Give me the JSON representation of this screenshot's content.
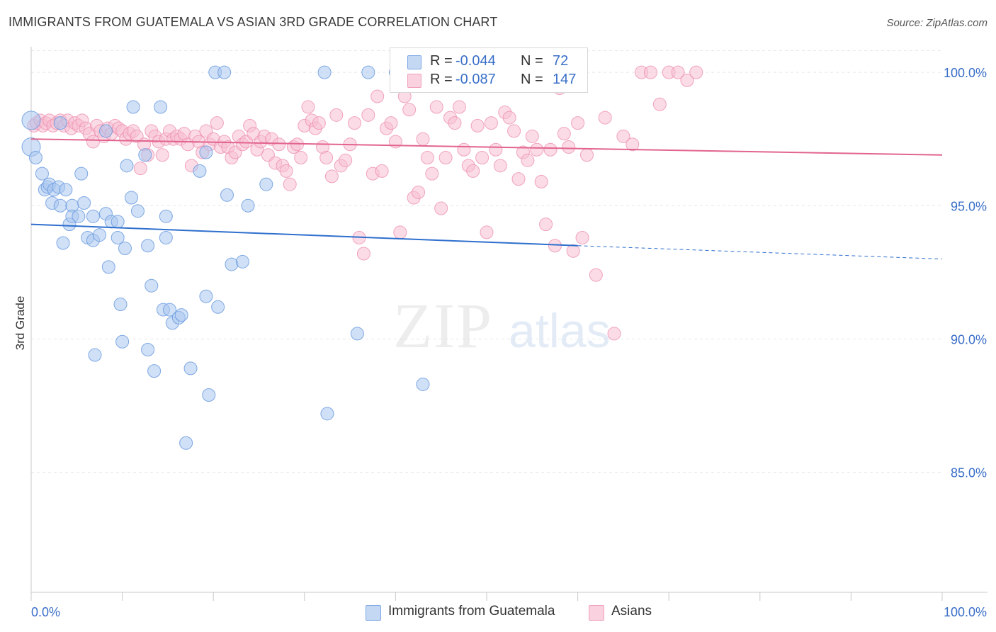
{
  "title": "IMMIGRANTS FROM GUATEMALA VS ASIAN 3RD GRADE CORRELATION CHART",
  "source": "Source: ZipAtlas.com",
  "watermark": {
    "zip": "ZIP",
    "atlas": "atlas"
  },
  "legend": {
    "series1": {
      "r_label": "R =",
      "r_value": "-0.044",
      "n_label": "N =",
      "n_value": "72"
    },
    "series2": {
      "r_label": "R =",
      "r_value": "-0.087",
      "n_label": "N =",
      "n_value": "147"
    }
  },
  "bottom_legend": {
    "series1": "Immigrants from Guatemala",
    "series2": "Asians"
  },
  "colors": {
    "blue_fill": "#a9c6ef",
    "blue_stroke": "#6b9be0",
    "blue_line": "#2f6fcd",
    "pink_fill": "#f7c0d1",
    "pink_stroke": "#ee8fb0",
    "pink_line": "#e2648f",
    "tick_label": "#3a6fc8",
    "grid": "#e6e6e6"
  },
  "chart_data": {
    "type": "scatter",
    "title": "IMMIGRANTS FROM GUATEMALA VS ASIAN 3RD GRADE CORRELATION CHART",
    "xlabel": "",
    "ylabel": "3rd Grade",
    "xlim": [
      0,
      100
    ],
    "ylim": [
      80.5,
      100.8
    ],
    "x_tick_labels": [
      "0.0%",
      "100.0%"
    ],
    "y_ticks": [
      85,
      90,
      95,
      100
    ],
    "y_tick_labels": [
      "85.0%",
      "90.0%",
      "95.0%",
      "100.0%"
    ],
    "grid": true,
    "series": [
      {
        "name": "Immigrants from Guatemala",
        "color": "blue",
        "trend": {
          "x": [
            0,
            60
          ],
          "y": [
            94.3,
            93.5
          ],
          "dashed_to": [
            100,
            93.0
          ]
        },
        "points": [
          [
            0.0,
            98.2
          ],
          [
            0.0,
            97.2
          ],
          [
            0.5,
            96.8
          ],
          [
            1.2,
            96.2
          ],
          [
            1.5,
            95.6
          ],
          [
            1.8,
            95.7
          ],
          [
            2.0,
            95.8
          ],
          [
            2.3,
            95.1
          ],
          [
            2.5,
            95.6
          ],
          [
            3.0,
            95.7
          ],
          [
            3.2,
            95.0
          ],
          [
            3.8,
            95.6
          ],
          [
            3.5,
            93.6
          ],
          [
            4.5,
            95.0
          ],
          [
            4.2,
            94.3
          ],
          [
            4.5,
            94.6
          ],
          [
            5.5,
            96.2
          ],
          [
            5.8,
            95.1
          ],
          [
            5.2,
            94.6
          ],
          [
            6.2,
            93.8
          ],
          [
            6.8,
            93.7
          ],
          [
            6.8,
            94.6
          ],
          [
            7.5,
            93.9
          ],
          [
            8.2,
            94.7
          ],
          [
            8.5,
            92.7
          ],
          [
            8.8,
            94.4
          ],
          [
            9.5,
            94.4
          ],
          [
            9.5,
            93.8
          ],
          [
            9.8,
            91.3
          ],
          [
            10.3,
            93.4
          ],
          [
            10.5,
            96.5
          ],
          [
            11.0,
            95.3
          ],
          [
            11.2,
            98.7
          ],
          [
            11.7,
            94.8
          ],
          [
            12.5,
            96.9
          ],
          [
            12.8,
            93.5
          ],
          [
            12.8,
            89.6
          ],
          [
            13.2,
            92.0
          ],
          [
            13.5,
            88.8
          ],
          [
            14.2,
            98.7
          ],
          [
            14.5,
            91.1
          ],
          [
            14.8,
            93.8
          ],
          [
            14.8,
            94.6
          ],
          [
            15.2,
            91.1
          ],
          [
            15.5,
            90.6
          ],
          [
            16.2,
            90.8
          ],
          [
            16.5,
            90.9
          ],
          [
            17.0,
            86.1
          ],
          [
            17.5,
            88.9
          ],
          [
            18.5,
            96.3
          ],
          [
            19.2,
            97.0
          ],
          [
            19.2,
            91.6
          ],
          [
            19.5,
            87.9
          ],
          [
            20.5,
            91.2
          ],
          [
            20.2,
            100.0
          ],
          [
            21.2,
            100.0
          ],
          [
            21.5,
            95.4
          ],
          [
            22.0,
            92.8
          ],
          [
            23.2,
            92.9
          ],
          [
            23.8,
            95.0
          ],
          [
            25.8,
            95.8
          ],
          [
            10.0,
            89.9
          ],
          [
            7.0,
            89.4
          ],
          [
            3.2,
            98.1
          ],
          [
            8.2,
            97.8
          ],
          [
            32.5,
            87.2
          ],
          [
            32.2,
            100.0
          ],
          [
            35.8,
            90.2
          ],
          [
            37.0,
            100.0
          ],
          [
            40.0,
            100.0
          ],
          [
            43.0,
            88.3
          ],
          [
            60.0,
            100.0
          ]
        ]
      },
      {
        "name": "Asians",
        "color": "pink",
        "trend": {
          "x": [
            0,
            100
          ],
          "y": [
            97.5,
            96.9
          ]
        },
        "points": [
          [
            0.3,
            98.0
          ],
          [
            0.6,
            98.1
          ],
          [
            1.0,
            98.2
          ],
          [
            1.3,
            98.0
          ],
          [
            1.6,
            98.1
          ],
          [
            2.0,
            98.2
          ],
          [
            2.4,
            98.0
          ],
          [
            2.8,
            98.1
          ],
          [
            3.2,
            98.2
          ],
          [
            3.6,
            98.0
          ],
          [
            4.0,
            98.2
          ],
          [
            4.4,
            97.9
          ],
          [
            4.8,
            98.1
          ],
          [
            5.2,
            98.0
          ],
          [
            5.6,
            98.2
          ],
          [
            6.0,
            97.9
          ],
          [
            6.4,
            97.7
          ],
          [
            6.8,
            97.4
          ],
          [
            7.2,
            98.0
          ],
          [
            7.6,
            97.8
          ],
          [
            8.0,
            97.6
          ],
          [
            8.4,
            97.9
          ],
          [
            8.8,
            97.7
          ],
          [
            9.2,
            98.0
          ],
          [
            9.6,
            97.9
          ],
          [
            10.0,
            97.8
          ],
          [
            10.4,
            97.5
          ],
          [
            10.8,
            97.7
          ],
          [
            11.2,
            97.8
          ],
          [
            11.6,
            97.6
          ],
          [
            12.0,
            96.4
          ],
          [
            12.4,
            97.3
          ],
          [
            12.8,
            96.9
          ],
          [
            13.2,
            97.8
          ],
          [
            13.6,
            97.6
          ],
          [
            14.0,
            97.4
          ],
          [
            14.4,
            96.9
          ],
          [
            14.8,
            97.5
          ],
          [
            15.2,
            97.8
          ],
          [
            15.6,
            97.5
          ],
          [
            16.0,
            97.6
          ],
          [
            16.4,
            97.5
          ],
          [
            16.8,
            97.7
          ],
          [
            17.2,
            97.3
          ],
          [
            17.6,
            96.5
          ],
          [
            18.0,
            97.6
          ],
          [
            18.4,
            97.4
          ],
          [
            18.8,
            97.0
          ],
          [
            19.2,
            97.8
          ],
          [
            19.6,
            97.3
          ],
          [
            20.0,
            97.5
          ],
          [
            20.4,
            98.1
          ],
          [
            20.8,
            97.2
          ],
          [
            21.2,
            97.4
          ],
          [
            21.6,
            97.2
          ],
          [
            22.0,
            96.8
          ],
          [
            22.4,
            97.0
          ],
          [
            22.8,
            97.6
          ],
          [
            23.2,
            97.3
          ],
          [
            23.6,
            97.4
          ],
          [
            24.0,
            98.0
          ],
          [
            24.4,
            97.7
          ],
          [
            24.8,
            97.1
          ],
          [
            25.2,
            97.4
          ],
          [
            25.6,
            97.6
          ],
          [
            26.0,
            96.9
          ],
          [
            26.4,
            97.5
          ],
          [
            26.8,
            96.6
          ],
          [
            27.2,
            97.3
          ],
          [
            27.6,
            96.5
          ],
          [
            28.0,
            96.3
          ],
          [
            28.4,
            95.8
          ],
          [
            28.8,
            97.2
          ],
          [
            29.2,
            97.3
          ],
          [
            29.6,
            96.8
          ],
          [
            30.0,
            98.0
          ],
          [
            30.4,
            98.7
          ],
          [
            30.8,
            98.2
          ],
          [
            31.2,
            97.9
          ],
          [
            31.6,
            98.1
          ],
          [
            32.0,
            97.2
          ],
          [
            32.4,
            96.8
          ],
          [
            33.0,
            96.1
          ],
          [
            33.5,
            98.4
          ],
          [
            34.0,
            96.5
          ],
          [
            34.5,
            96.7
          ],
          [
            35.0,
            97.3
          ],
          [
            35.5,
            98.1
          ],
          [
            36.0,
            93.8
          ],
          [
            36.5,
            93.2
          ],
          [
            37.0,
            98.4
          ],
          [
            37.5,
            96.2
          ],
          [
            38.0,
            99.1
          ],
          [
            38.5,
            96.3
          ],
          [
            39.0,
            97.9
          ],
          [
            39.5,
            98.1
          ],
          [
            40.0,
            97.4
          ],
          [
            40.5,
            94.0
          ],
          [
            41.0,
            99.1
          ],
          [
            41.5,
            98.6
          ],
          [
            42.0,
            95.3
          ],
          [
            42.5,
            95.5
          ],
          [
            43.0,
            97.5
          ],
          [
            43.5,
            96.8
          ],
          [
            44.0,
            96.2
          ],
          [
            44.5,
            98.7
          ],
          [
            45.0,
            94.9
          ],
          [
            45.5,
            96.8
          ],
          [
            46.0,
            98.3
          ],
          [
            46.5,
            98.1
          ],
          [
            47.0,
            98.7
          ],
          [
            47.5,
            97.1
          ],
          [
            48.0,
            96.5
          ],
          [
            48.5,
            96.3
          ],
          [
            49.0,
            98.0
          ],
          [
            49.5,
            96.8
          ],
          [
            50.0,
            94.0
          ],
          [
            50.5,
            98.1
          ],
          [
            51.0,
            97.1
          ],
          [
            51.5,
            96.5
          ],
          [
            52.0,
            98.5
          ],
          [
            52.5,
            98.3
          ],
          [
            53.0,
            97.8
          ],
          [
            53.5,
            96.0
          ],
          [
            54.0,
            97.0
          ],
          [
            54.5,
            96.7
          ],
          [
            55.0,
            97.6
          ],
          [
            55.5,
            97.1
          ],
          [
            56.0,
            95.9
          ],
          [
            56.5,
            94.3
          ],
          [
            57.0,
            97.1
          ],
          [
            57.5,
            93.5
          ],
          [
            58.0,
            99.4
          ],
          [
            58.5,
            97.7
          ],
          [
            59.0,
            97.2
          ],
          [
            59.5,
            93.3
          ],
          [
            60.0,
            98.1
          ],
          [
            60.5,
            93.8
          ],
          [
            61.0,
            96.9
          ],
          [
            62.0,
            92.4
          ],
          [
            63.0,
            98.3
          ],
          [
            64.0,
            90.2
          ],
          [
            65.0,
            97.6
          ],
          [
            66.0,
            97.3
          ],
          [
            67.0,
            100.0
          ],
          [
            68.0,
            100.0
          ],
          [
            69.0,
            98.8
          ],
          [
            70.0,
            100.0
          ],
          [
            71.0,
            100.0
          ],
          [
            72.0,
            99.7
          ],
          [
            73.0,
            100.0
          ]
        ]
      }
    ]
  }
}
